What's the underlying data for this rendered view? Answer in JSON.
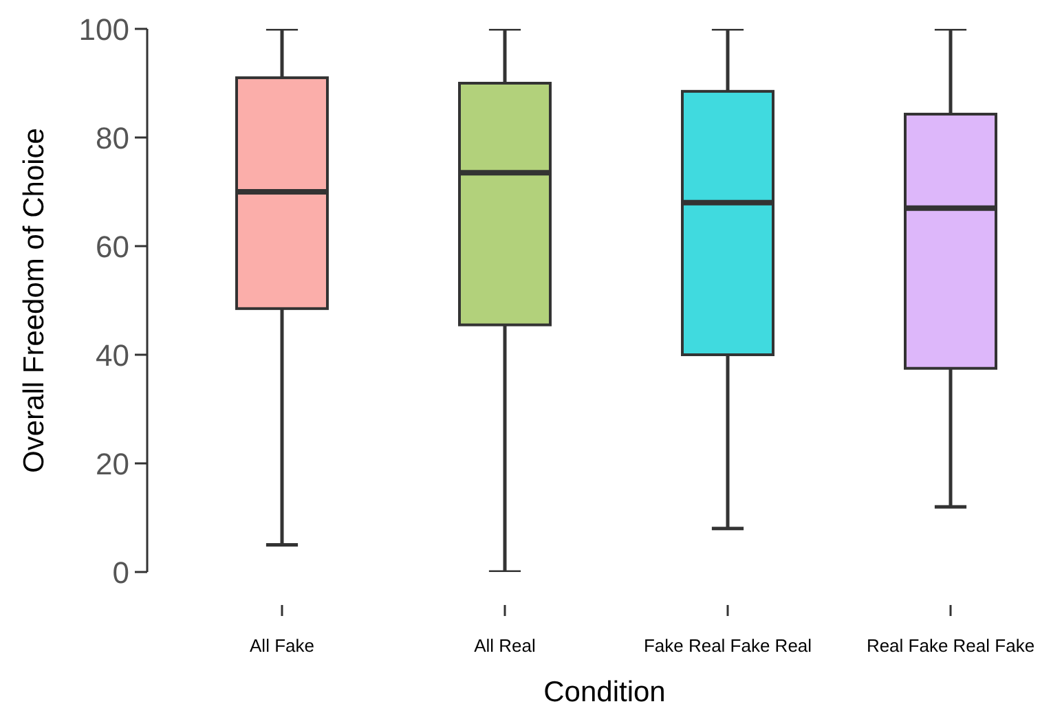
{
  "chart_data": {
    "type": "box",
    "xlabel": "Condition",
    "ylabel": "Overall Freedom of Choice",
    "categories": [
      "All Fake",
      "All Real",
      "Fake Real Fake Real",
      "Real Fake Real Fake"
    ],
    "boxes": [
      {
        "low": 5,
        "q1": 48.5,
        "median": 70,
        "q3": 91,
        "high": 100
      },
      {
        "low": 0,
        "q1": 45.5,
        "median": 73.5,
        "q3": 90,
        "high": 100
      },
      {
        "low": 8,
        "q1": 40,
        "median": 68,
        "q3": 88.5,
        "high": 100
      },
      {
        "low": 12,
        "q1": 37.5,
        "median": 67,
        "q3": 84.3,
        "high": 100
      }
    ],
    "colors": [
      "#fbaeaa",
      "#b2d17b",
      "#40dadf",
      "#ddb7fa"
    ],
    "ylim": [
      0,
      100
    ],
    "yticks": [
      0,
      20,
      40,
      60,
      80,
      100
    ]
  }
}
